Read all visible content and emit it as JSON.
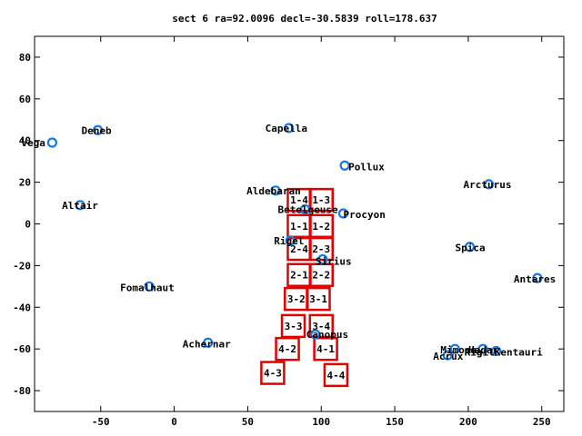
{
  "chart_data": {
    "type": "scatter",
    "title": "sect 6 ra=92.0096 decl=-30.5839 roll=178.637",
    "xlabel": "",
    "ylabel": "",
    "xlim": [
      -95,
      265
    ],
    "ylim": [
      -90,
      90
    ],
    "xticks": [
      -50,
      0,
      50,
      100,
      150,
      200,
      250
    ],
    "yticks": [
      -80,
      -60,
      -40,
      -20,
      0,
      20,
      40,
      60,
      80
    ],
    "colors": {
      "stars": "#1a78e0",
      "sectors": "#e00000",
      "frame": "#000000"
    },
    "stars": [
      {
        "name": "Vega",
        "x": -83,
        "y": 39
      },
      {
        "name": "Deneb",
        "x": -52,
        "y": 45
      },
      {
        "name": "Altair",
        "x": -64,
        "y": 9
      },
      {
        "name": "Fomalhaut",
        "x": -17,
        "y": -30
      },
      {
        "name": "Achernar",
        "x": 23,
        "y": -57
      },
      {
        "name": "Capella",
        "x": 78,
        "y": 46
      },
      {
        "name": "Pollux",
        "x": 116,
        "y": 28
      },
      {
        "name": "Aldebaran",
        "x": 69,
        "y": 16
      },
      {
        "name": "Betelgeuse",
        "x": 89,
        "y": 7
      },
      {
        "name": "Procyon",
        "x": 115,
        "y": 5
      },
      {
        "name": "Rigel",
        "x": 79,
        "y": -8
      },
      {
        "name": "Sirius",
        "x": 101,
        "y": -17
      },
      {
        "name": "Canopus",
        "x": 96,
        "y": -53
      },
      {
        "name": "Arcturus",
        "x": 214,
        "y": 19
      },
      {
        "name": "Spica",
        "x": 201,
        "y": -11
      },
      {
        "name": "Antares",
        "x": 247,
        "y": -26
      },
      {
        "name": "Mimosa",
        "x": 191,
        "y": -60
      },
      {
        "name": "Acrux",
        "x": 186,
        "y": -63
      },
      {
        "name": "Hadar",
        "x": 210,
        "y": -60
      },
      {
        "name": "Rigil Kentaurus",
        "x": 219,
        "y": -61
      }
    ],
    "star_labels": [
      {
        "name": "Vega",
        "text": "Vega"
      },
      {
        "name": "Deneb",
        "text": "Deneb"
      },
      {
        "name": "Altair",
        "text": "Altair"
      },
      {
        "name": "Fomalhaut",
        "text": "Fomalhaut"
      },
      {
        "name": "Achernar",
        "text": "Achernar"
      },
      {
        "name": "Capella",
        "text": "Capella"
      },
      {
        "name": "Pollux",
        "text": "Pollux"
      },
      {
        "name": "Aldebaran",
        "text": "Aldebaran"
      },
      {
        "name": "Betelgeuse",
        "text": "Betelgeuse"
      },
      {
        "name": "Procyon",
        "text": "Procyon"
      },
      {
        "name": "Rigel",
        "text": "Rigel"
      },
      {
        "name": "Sirius",
        "text": "Sirius"
      },
      {
        "name": "Canopus",
        "text": "Canopus"
      },
      {
        "name": "Arcturus",
        "text": "Arcturus"
      },
      {
        "name": "Spica",
        "text": "Spica"
      },
      {
        "name": "Antares",
        "text": "Antares"
      },
      {
        "name": "Mimosa",
        "text": "Mimosa"
      },
      {
        "name": "Acrux",
        "text": "Acrux"
      },
      {
        "name": "Hadar",
        "text": "Hadar"
      },
      {
        "name": "Rigil Kentaurus",
        "text": "RigilKentauri"
      }
    ],
    "sectors": [
      {
        "label": "1-4",
        "x": 85,
        "y": 11.5
      },
      {
        "label": "1-3",
        "x": 100,
        "y": 11.5
      },
      {
        "label": "1-1",
        "x": 85,
        "y": -1
      },
      {
        "label": "1-2",
        "x": 100,
        "y": -1
      },
      {
        "label": "2-4",
        "x": 85,
        "y": -12
      },
      {
        "label": "2-3",
        "x": 100,
        "y": -12
      },
      {
        "label": "2-1",
        "x": 85,
        "y": -24.5
      },
      {
        "label": "2-2",
        "x": 100,
        "y": -24.5
      },
      {
        "label": "3-2",
        "x": 83,
        "y": -36
      },
      {
        "label": "3-1",
        "x": 98,
        "y": -36
      },
      {
        "label": "3-3",
        "x": 81,
        "y": -49
      },
      {
        "label": "3-4",
        "x": 100,
        "y": -49
      },
      {
        "label": "4-2",
        "x": 77,
        "y": -60
      },
      {
        "label": "4-1",
        "x": 103,
        "y": -60
      },
      {
        "label": "4-3",
        "x": 67,
        "y": -71.5
      },
      {
        "label": "4-4",
        "x": 110,
        "y": -72.5
      }
    ]
  }
}
